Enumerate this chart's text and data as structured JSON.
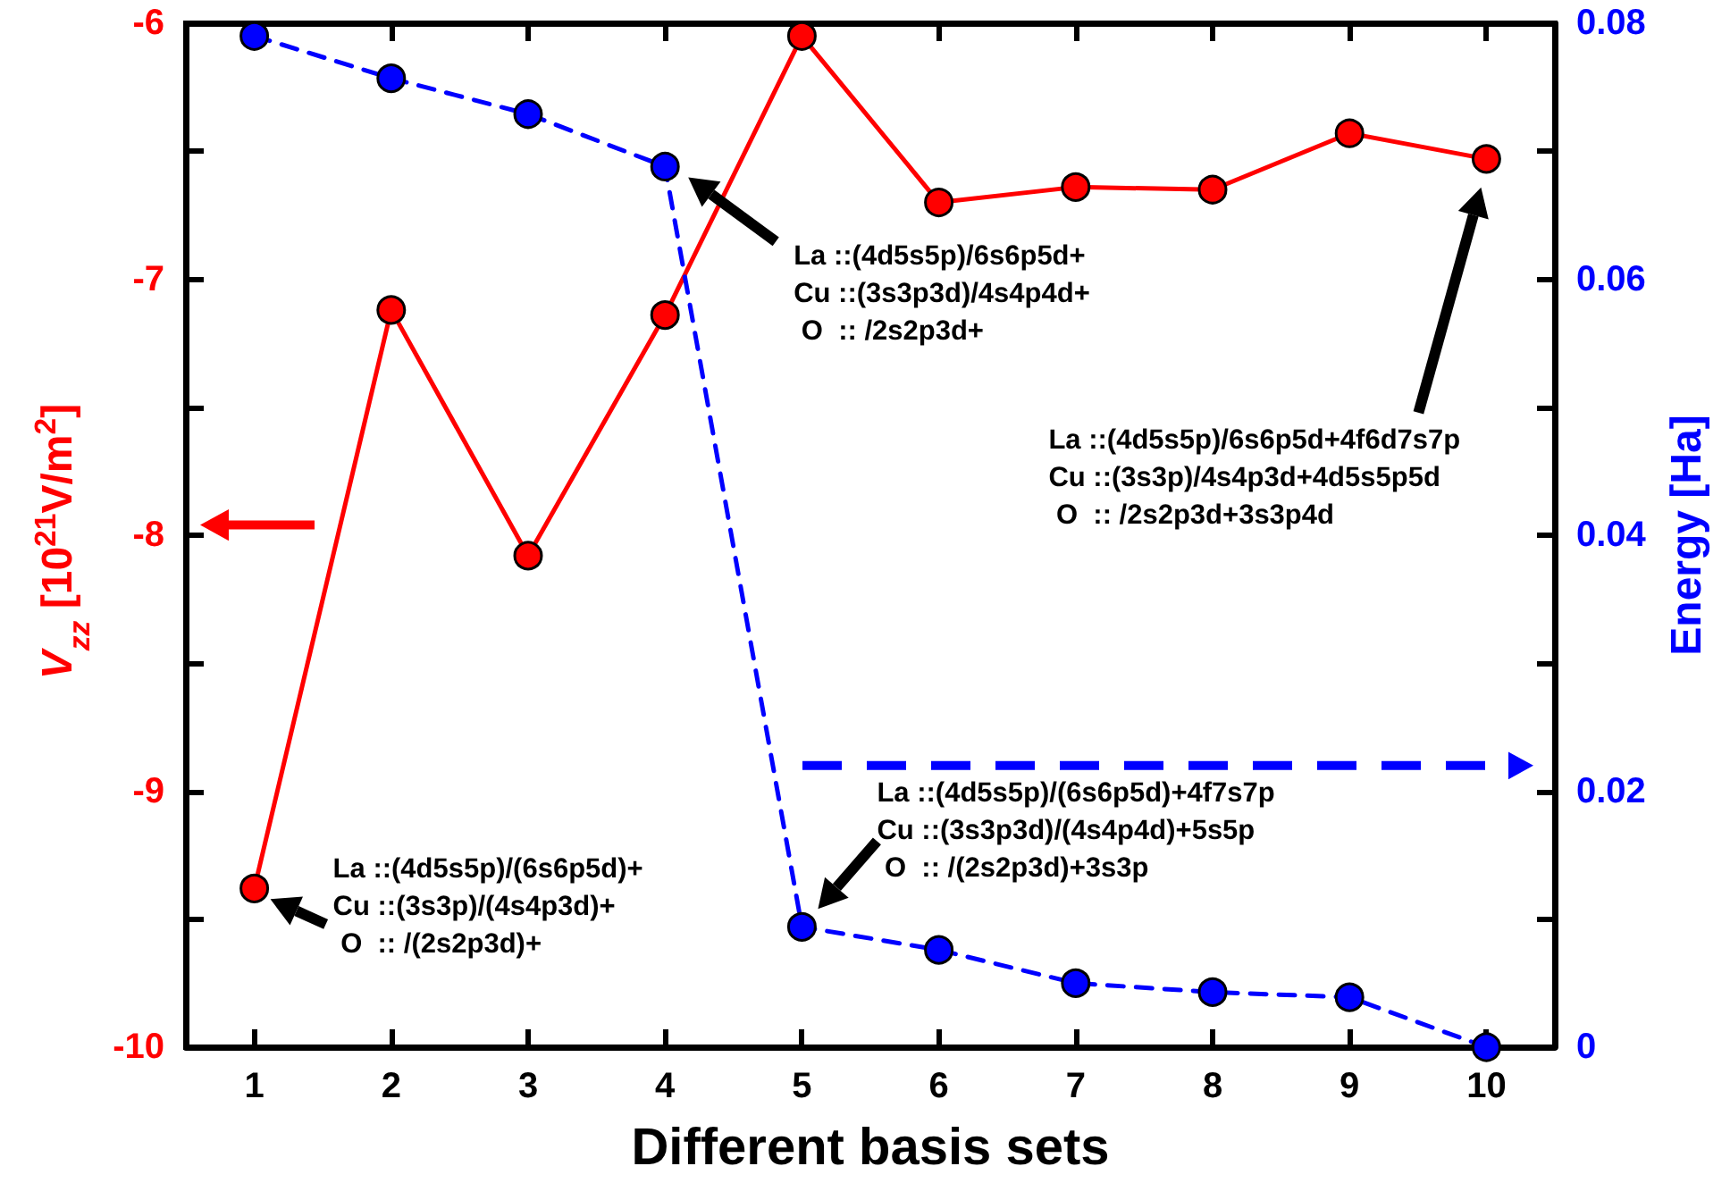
{
  "chart_data": {
    "type": "line",
    "xlabel": "Different basis sets",
    "ylabel": "V$_{zz}$ [10$^{21}$V/m$^{2}$]",
    "y2label": "Energy [Ha]",
    "categories": [
      "1",
      "2",
      "3",
      "4",
      "5",
      "6",
      "7",
      "8",
      "9",
      "10"
    ],
    "series": [
      {
        "color": "#ff0000",
        "line_style": "solid",
        "values": [
          -9.38,
          -7.12,
          -8.08,
          -7.14,
          -6.05,
          -6.7,
          -6.64,
          -6.65,
          -6.43,
          -6.53
        ]
      },
      {
        "color": "#0000ff",
        "line_style": "dashed",
        "axis": "y2",
        "values": [
          0.079,
          0.0757,
          0.0729,
          0.0688,
          0.0094,
          0.0076,
          0.005,
          0.0043,
          0.0039,
          0.0
        ]
      }
    ],
    "ylim": [
      -10,
      -6
    ],
    "yticks": [
      -10,
      {
        "value": -9.5,
        "label": null
      },
      -9,
      {
        "value": -8.5,
        "label": null
      },
      -8,
      {
        "value": -7.5,
        "label": null
      },
      -7,
      {
        "value": -6.5,
        "label": null
      },
      -6
    ],
    "y2lim": [
      0,
      0.08
    ],
    "y2ticks": [
      0,
      {
        "value": 0.01,
        "label": null
      },
      0.02,
      {
        "value": 0.03,
        "label": null
      },
      0.04,
      {
        "value": 0.05,
        "label": null
      },
      0.06,
      {
        "value": 0.07,
        "label": null
      },
      0.08
    ],
    "marker": "circle",
    "grid": false,
    "annotations": [
      "La ::(4d5s5p)/(6s6p5d)+\nCu ::(3s3p)/(4s4p3d)+\n O  :: /(2s2p3d)+",
      "La ::(4d5s5p)/6s6p5d+\nCu ::(3s3p3d)/4s4p4d+\n O  :: /2s2p3d+",
      "La ::(4d5s5p)/(6s6p5d)+4f7s7p\nCu ::(3s3p3d)/(4s4p4d)+5s5p\n O  :: /(2s2p3d)+3s3p",
      "La ::(4d5s5p)/6s6p5d+4f6d7s7p\nCu ::(3s3p)/4s4p3d+4d5s5p5d\n O  :: /2s2p3d+3s3p4d"
    ]
  }
}
